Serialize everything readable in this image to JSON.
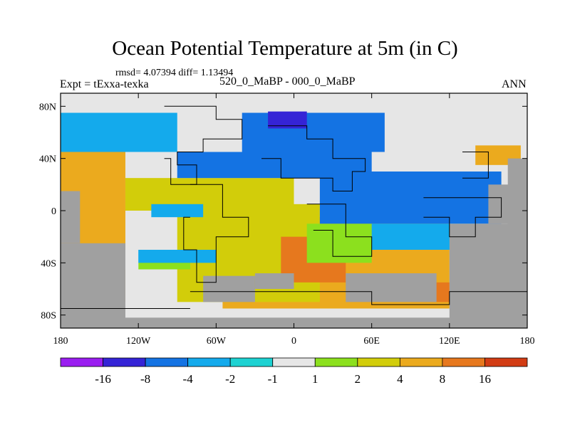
{
  "chart_data": {
    "type": "heatmap",
    "title": "Ocean Potential Temperature at 5m (in C)",
    "stats": "rmsd= 4.07394 diff= 1.13494",
    "left_label": "Expt = tExxa-texka",
    "center_label": "520_0_MaBP - 000_0_MaBP",
    "right_label": "ANN",
    "x_ticks": [
      {
        "value": -180,
        "label": "180"
      },
      {
        "value": -120,
        "label": "120W"
      },
      {
        "value": -60,
        "label": "60W"
      },
      {
        "value": 0,
        "label": "0"
      },
      {
        "value": 60,
        "label": "60E"
      },
      {
        "value": 120,
        "label": "120E"
      },
      {
        "value": 180,
        "label": "180"
      }
    ],
    "y_ticks": [
      {
        "value": 80,
        "label": "80N"
      },
      {
        "value": 40,
        "label": "40N"
      },
      {
        "value": 0,
        "label": "0"
      },
      {
        "value": -40,
        "label": "40S"
      },
      {
        "value": -80,
        "label": "80S"
      }
    ],
    "xlim": [
      -180,
      180
    ],
    "ylim": [
      -90,
      90
    ],
    "colorbar": {
      "levels": [
        "-16",
        "-8",
        "-4",
        "-2",
        "-1",
        "1",
        "2",
        "4",
        "8",
        "16"
      ],
      "colors": [
        "#9a1ef0",
        "#3524d6",
        "#1473e3",
        "#14aaec",
        "#1ed2d2",
        "#e6e6e6",
        "#8ce01e",
        "#d2cd0a",
        "#ebaa1e",
        "#e6781e",
        "#d23c14"
      ]
    },
    "land_color": "#a0a0a0",
    "regions": [
      {
        "bin": 5,
        "lon": [
          -180,
          180
        ],
        "lat": [
          -90,
          90
        ]
      },
      {
        "bin": 8,
        "lon": [
          -180,
          -130
        ],
        "lat": [
          -70,
          45
        ]
      },
      {
        "bin": 8,
        "lon": [
          -55,
          120
        ],
        "lat": [
          -75,
          -5
        ]
      },
      {
        "bin": 7,
        "lon": [
          -90,
          20
        ],
        "lat": [
          -70,
          5
        ]
      },
      {
        "bin": 9,
        "lon": [
          -10,
          40
        ],
        "lat": [
          -55,
          -20
        ]
      },
      {
        "bin": 9,
        "lon": [
          90,
          120
        ],
        "lat": [
          -70,
          -55
        ]
      },
      {
        "bin": 7,
        "lon": [
          -130,
          0
        ],
        "lat": [
          0,
          25
        ]
      },
      {
        "bin": 6,
        "lon": [
          10,
          60
        ],
        "lat": [
          -40,
          -10
        ]
      },
      {
        "bin": 6,
        "lon": [
          -120,
          -80
        ],
        "lat": [
          -45,
          -30
        ]
      },
      {
        "bin": 3,
        "lon": [
          -180,
          -90
        ],
        "lat": [
          45,
          75
        ]
      },
      {
        "bin": 2,
        "lon": [
          -40,
          70
        ],
        "lat": [
          45,
          75
        ]
      },
      {
        "bin": 1,
        "lon": [
          -20,
          10
        ],
        "lat": [
          63,
          76
        ]
      },
      {
        "bin": 2,
        "lon": [
          -90,
          60
        ],
        "lat": [
          25,
          45
        ]
      },
      {
        "bin": 2,
        "lon": [
          20,
          160
        ],
        "lat": [
          -10,
          30
        ]
      },
      {
        "bin": 3,
        "lon": [
          60,
          140
        ],
        "lat": [
          -30,
          -10
        ]
      },
      {
        "bin": 3,
        "lon": [
          -180,
          -60
        ],
        "lat": [
          -40,
          -30
        ]
      },
      {
        "bin": 3,
        "lon": [
          -110,
          -70
        ],
        "lat": [
          -5,
          5
        ]
      },
      {
        "bin": 8,
        "lon": [
          140,
          175
        ],
        "lat": [
          35,
          50
        ]
      },
      {
        "bin": 5,
        "lon": [
          -180,
          180
        ],
        "lat": [
          78,
          90
        ]
      },
      {
        "bin": 5,
        "lon": [
          -180,
          -120
        ],
        "lat": [
          -45,
          -30
        ]
      }
    ],
    "land": [
      {
        "lon": [
          -180,
          -130
        ],
        "lat": [
          -90,
          -25
        ]
      },
      {
        "lon": [
          -180,
          -165
        ],
        "lat": [
          -25,
          15
        ]
      },
      {
        "lon": [
          -70,
          -30
        ],
        "lat": [
          -70,
          -50
        ]
      },
      {
        "lon": [
          -30,
          0
        ],
        "lat": [
          -60,
          -48
        ]
      },
      {
        "lon": [
          40,
          110
        ],
        "lat": [
          -70,
          -48
        ]
      },
      {
        "lon": [
          120,
          180
        ],
        "lat": [
          -90,
          -10
        ]
      },
      {
        "lon": [
          150,
          180
        ],
        "lat": [
          -10,
          20
        ]
      },
      {
        "lon": [
          165,
          180
        ],
        "lat": [
          -20,
          40
        ]
      },
      {
        "lon": [
          -180,
          180
        ],
        "lat": [
          -90,
          -82
        ]
      }
    ]
  }
}
